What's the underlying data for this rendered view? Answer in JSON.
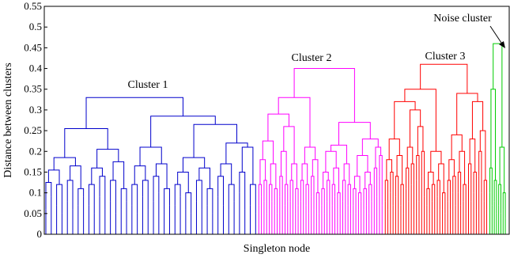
{
  "chart_data": {
    "type": "dendrogram",
    "title": "",
    "xlabel": "Singleton node",
    "ylabel": "Distance between clusters",
    "ylim": [
      0,
      0.55
    ],
    "yticks": [
      "0",
      "0.05",
      "0.1",
      "0.15",
      "0.2",
      "0.25",
      "0.3",
      "0.35",
      "0.4",
      "0.45",
      "0.5",
      "0.55"
    ],
    "colors": {
      "cluster1": "#0000cc",
      "cluster2": "#ff00ff",
      "cluster3": "#ff0000",
      "noise": "#00cc00"
    },
    "clusters": [
      {
        "name": "Cluster 1",
        "color": "#0000cc",
        "x_range": [
          0,
          0.458
        ],
        "root_height": 0.33,
        "tree": [
          0.33,
          [
            0.255,
            [
              0.185,
              [
                0.155,
                [
                  0.125,
                  0.06,
                  0.09
                ],
                [
                  0.12,
                  0.07,
                  0.05
                ]
              ],
              [
                0.165,
                [
                  0.13,
                  0.08,
                  0.06
                ],
                [
                  0.11,
                  0.07,
                  0.09
                ]
              ]
            ],
            [
              0.205,
              [
                0.16,
                [
                  0.12,
                  0.07,
                  0.05
                ],
                [
                  0.14,
                  0.09,
                  0.06
                ]
              ],
              [
                0.175,
                [
                  0.13,
                  0.08,
                  0.05
                ],
                [
                  0.11,
                  0.06,
                  0.08
                ]
              ]
            ]
          ],
          [
            0.285,
            [
              0.21,
              [
                0.165,
                [
                  0.12,
                  0.07,
                  0.05
                ],
                [
                  0.13,
                  0.09,
                  0.06
                ]
              ],
              [
                0.17,
                [
                  0.14,
                  0.08,
                  0.1
                ],
                [
                  0.11,
                  0.06,
                  0.07
                ]
              ]
            ],
            [
              0.265,
              [
                0.185,
                [
                  0.15,
                  [
                    0.12,
                    0.07,
                    0.09
                  ],
                  [
                    0.1,
                    0.06,
                    0.05
                  ]
                ],
                [
                  0.16,
                  [
                    0.13,
                    0.08,
                    0.06
                  ],
                  [
                    0.11,
                    0.07,
                    0.05
                  ]
                ]
              ],
              [
                0.22,
                [
                  0.17,
                  [
                    0.14,
                    0.09,
                    0.07
                  ],
                  [
                    0.12,
                    0.06,
                    0.08
                  ]
                ],
                [
                  0.21,
                  [
                    0.15,
                    0.1,
                    0.06
                  ],
                  [
                    0.12,
                    0.07,
                    0.05
                  ]
                ]
              ]
            ]
          ]
        ]
      },
      {
        "name": "Cluster 2",
        "color": "#ff00ff",
        "x_range": [
          0.458,
          0.73
        ],
        "root_height": 0.4,
        "tree": [
          0.4,
          [
            0.33,
            [
              0.29,
              [
                0.225,
                [
                  0.18,
                  [
                    0.12,
                    0.07,
                    0.09
                  ],
                  [
                    0.13,
                    0.08,
                    0.05
                  ]
                ],
                [
                  0.17,
                  [
                    0.12,
                    0.06,
                    0.08
                  ],
                  [
                    0.11,
                    0.07,
                    0.05
                  ]
                ]
              ],
              [
                0.26,
                [
                  0.2,
                  [
                    0.14,
                    0.09,
                    0.06
                  ],
                  [
                    0.12,
                    0.07,
                    0.08
                  ]
                ],
                [
                  0.17,
                  [
                    0.13,
                    0.08,
                    0.06
                  ],
                  [
                    0.11,
                    0.05,
                    0.07
                  ]
                ]
              ]
            ],
            [
              0.21,
              [
                0.17,
                [
                  0.13,
                  0.08,
                  0.06
                ],
                [
                  0.12,
                  0.07,
                  0.05
                ]
              ],
              [
                0.18,
                [
                  0.14,
                  0.09,
                  0.06
                ],
                [
                  0.1,
                  0.06,
                  0.05
                ]
              ]
            ]
          ],
          [
            0.27,
            [
              0.215,
              [
                0.2,
                [
                  0.15,
                  [
                    0.11,
                    0.07,
                    0.05
                  ],
                  [
                    0.13,
                    0.08,
                    0.06
                  ]
                ],
                [
                  0.16,
                  [
                    0.12,
                    0.07,
                    0.09
                  ],
                  [
                    0.1,
                    0.06,
                    0.05
                  ]
                ]
              ],
              [
                0.17,
                [
                  0.13,
                  0.08,
                  0.06
                ],
                [
                  0.12,
                  0.07,
                  0.05
                ]
              ]
            ],
            [
              0.23,
              [
                0.19,
                [
                  0.14,
                  [
                    0.11,
                    0.07,
                    0.05
                  ],
                  [
                    0.1,
                    0.06,
                    0.08
                  ]
                ],
                [
                  0.15,
                  [
                    0.11,
                    0.06,
                    0.07
                  ],
                  [
                    0.12,
                    0.05,
                    0.08
                  ]
                ]
              ],
              [
                0.21,
                [
                  0.16,
                  0.12,
                  0.09
                ],
                [
                  0.19,
                  0.14,
                  0.07
                ]
              ]
            ]
          ]
        ]
      },
      {
        "name": "Cluster 3",
        "color": "#ff0000",
        "x_range": [
          0.73,
          0.955
        ],
        "root_height": 0.41,
        "tree": [
          0.41,
          [
            0.35,
            [
              0.32,
              [
                0.23,
                [
                  0.18,
                  [
                    0.13,
                    0.08,
                    0.06
                  ],
                  [
                    0.15,
                    0.1,
                    0.07
                  ]
                ],
                [
                  0.19,
                  [
                    0.14,
                    0.09,
                    0.06
                  ],
                  [
                    0.12,
                    0.07,
                    0.05
                  ]
                ]
              ],
              [
                0.3,
                [
                  0.21,
                  [
                    0.16,
                    0.11,
                    0.08
                  ],
                  [
                    0.17,
                    0.12,
                    0.06
                  ]
                ],
                [
                  0.26,
                  [
                    0.19,
                    0.13,
                    0.08
                  ],
                  [
                    0.2,
                    0.14,
                    0.09
                  ]
                ]
              ]
            ],
            [
              0.2,
              [
                0.15,
                [
                  0.11,
                  0.07,
                  0.05
                ],
                [
                  0.12,
                  0.08,
                  0.06
                ]
              ],
              [
                0.17,
                [
                  0.13,
                  0.09,
                  0.06
                ],
                [
                  0.1,
                  0.06,
                  0.05
                ]
              ]
            ]
          ],
          [
            0.34,
            [
              0.24,
              [
                0.18,
                [
                  0.13,
                  0.08,
                  0.06
                ],
                [
                  0.14,
                  0.1,
                  0.07
                ]
              ],
              [
                0.2,
                [
                  0.15,
                  0.1,
                  0.07
                ],
                [
                  0.12,
                  0.08,
                  0.05
                ]
              ]
            ],
            [
              0.32,
              [
                0.23,
                [
                  0.17,
                  0.12,
                  0.08
                ],
                [
                  0.15,
                  0.1,
                  0.06
                ]
              ],
              [
                0.25,
                [
                  0.2,
                  0.14,
                  0.1
                ],
                [
                  0.13,
                  0.08,
                  0.06
                ]
              ]
            ]
          ]
        ]
      },
      {
        "name": "Noise cluster",
        "color": "#00cc00",
        "x_range": [
          0.955,
          0.995
        ],
        "root_height": 0.46,
        "tree": [
          0.46,
          [
            0.35,
            [
              0.16,
              0.1,
              0.07
            ],
            [
              0.13,
              0.08,
              0.05
            ]
          ],
          [
            0.21,
            [
              0.12,
              0.07,
              0.05
            ],
            [
              0.1,
              0.06,
              0.04
            ]
          ]
        ]
      }
    ],
    "annotations": [
      {
        "text": "Cluster 1",
        "target": "Cluster 1"
      },
      {
        "text": "Cluster 2",
        "target": "Cluster 2"
      },
      {
        "text": "Cluster 3",
        "target": "Cluster 3"
      },
      {
        "text": "Noise cluster",
        "target": "Noise cluster",
        "arrow": true
      }
    ]
  }
}
